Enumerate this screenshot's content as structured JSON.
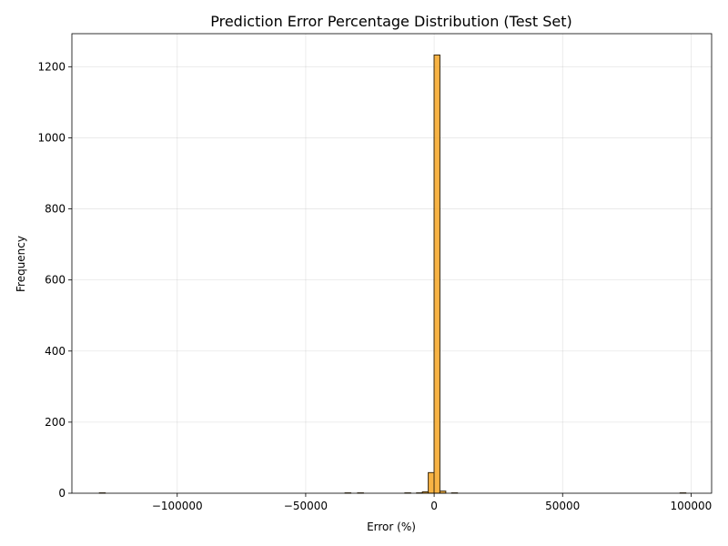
{
  "chart_data": {
    "type": "bar",
    "title": "Prediction Error Percentage Distribution (Test Set)",
    "xlabel": "Error (%)",
    "ylabel": "Frequency",
    "xlim": [
      -141000,
      108000
    ],
    "ylim": [
      0,
      1293
    ],
    "xticks": [
      -100000,
      -50000,
      0,
      50000,
      100000
    ],
    "xtick_labels": [
      "−100000",
      "−50000",
      "0",
      "50000",
      "100000"
    ],
    "yticks": [
      0,
      200,
      400,
      600,
      800,
      1000,
      1200
    ],
    "ytick_labels": [
      "0",
      "200",
      "400",
      "600",
      "800",
      "1000",
      "1200"
    ],
    "grid": true,
    "bin_width": 2275,
    "bins": [
      {
        "x0": -130300,
        "count": 1
      },
      {
        "x0": -34700,
        "count": 1
      },
      {
        "x0": -29800,
        "count": 1
      },
      {
        "x0": -11400,
        "count": 1
      },
      {
        "x0": -6850,
        "count": 1
      },
      {
        "x0": -4575,
        "count": 4
      },
      {
        "x0": -2300,
        "count": 58
      },
      {
        "x0": -25,
        "count": 1233
      },
      {
        "x0": 2250,
        "count": 6
      },
      {
        "x0": 6800,
        "count": 1
      },
      {
        "x0": 95700,
        "count": 1
      }
    ],
    "colors": {
      "bar_fill": "#F6A623",
      "bar_edge": "#3a2a10"
    }
  }
}
